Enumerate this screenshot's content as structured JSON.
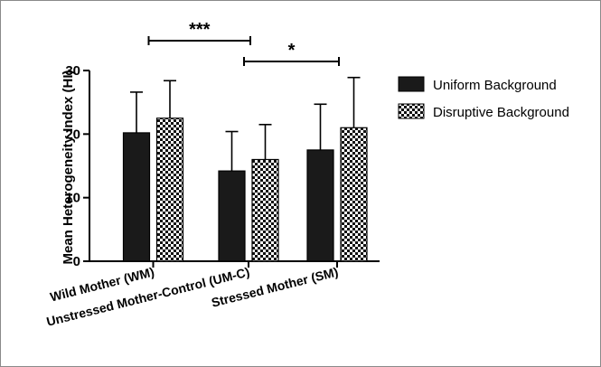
{
  "chart_data": {
    "type": "bar",
    "ylabel": "Mean Heterogeneity Index (HI)",
    "ylim": [
      0,
      30
    ],
    "yticks": [
      0,
      10,
      20,
      30
    ],
    "categories": [
      "Wild Mother (WM)",
      "Unstressed Mother-Control (UM-C)",
      "Stressed Mother (SM)"
    ],
    "series": [
      {
        "name": "Uniform Background",
        "values": [
          20.2,
          14.2,
          17.5
        ],
        "errors": [
          6.4,
          6.2,
          7.2
        ],
        "color": "#1a1a1a",
        "pattern": "solid"
      },
      {
        "name": "Disruptive Background",
        "values": [
          22.5,
          16.0,
          21.0
        ],
        "errors": [
          5.9,
          5.5,
          7.9
        ],
        "color": "#111111",
        "pattern": "checkerboard"
      }
    ],
    "legend_position": "top-right",
    "significance": [
      {
        "label": "***",
        "from_category": 0,
        "to_category": 1
      },
      {
        "label": "*",
        "from_category": 1,
        "to_category": 2
      }
    ]
  }
}
